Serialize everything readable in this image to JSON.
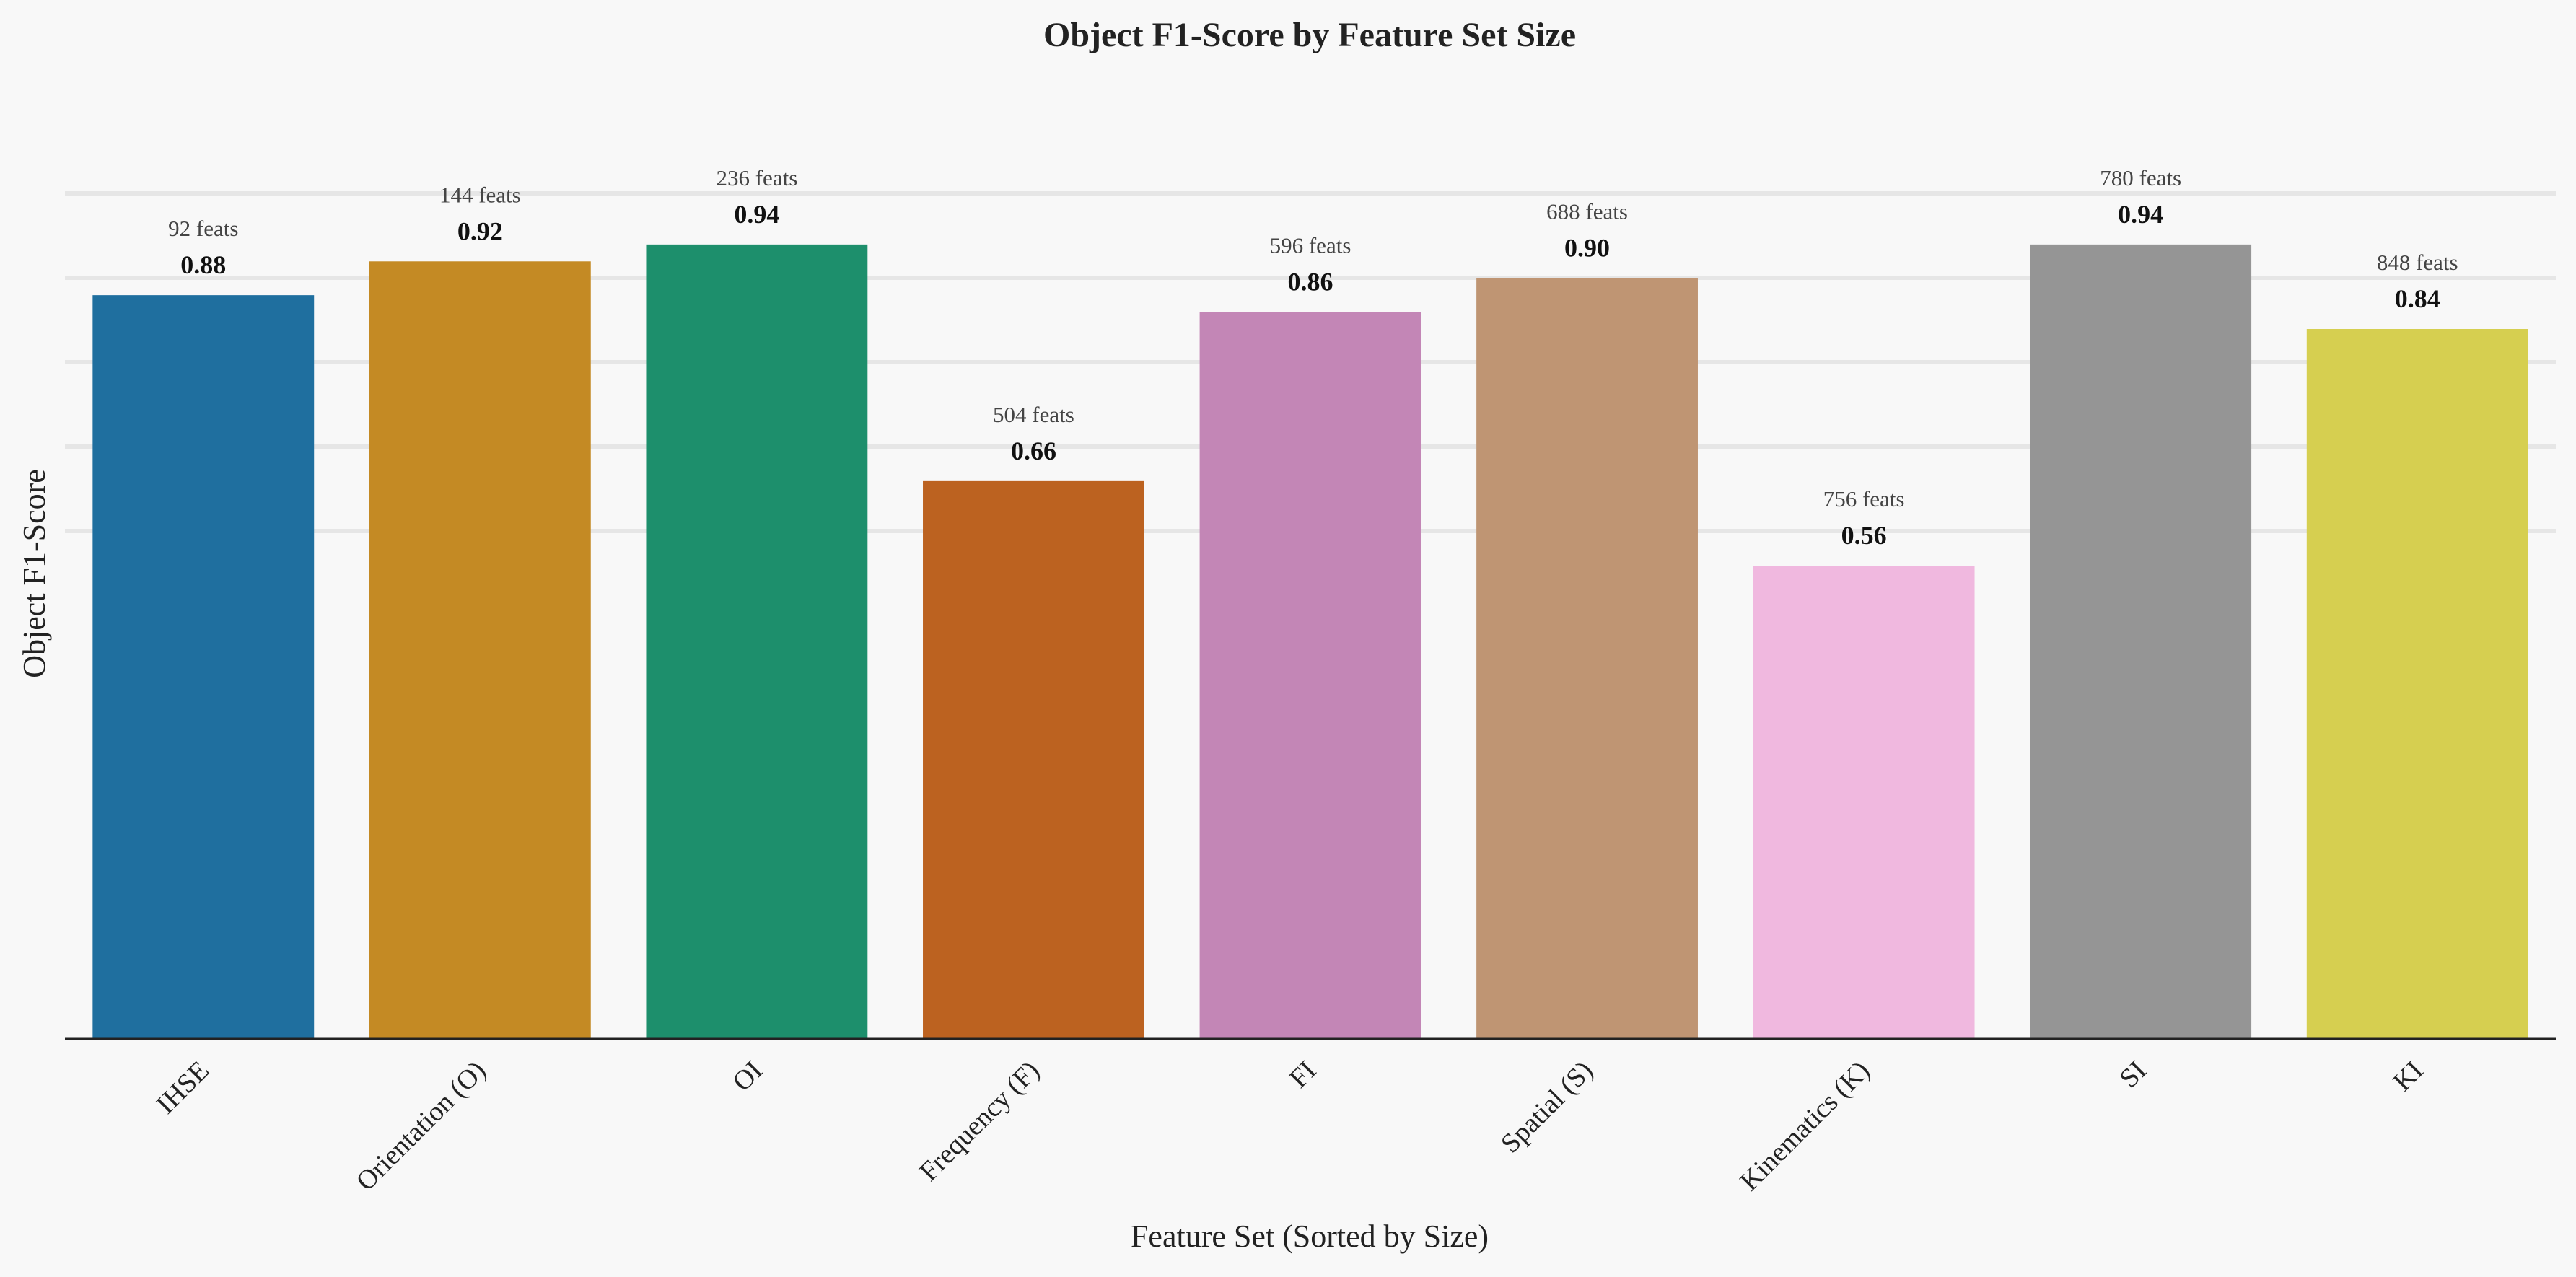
{
  "chart_data": {
    "type": "bar",
    "title": "Object F1-Score by Feature Set Size",
    "xlabel": "Feature Set (Sorted by Size)",
    "ylabel": "Object F1-Score",
    "ylim": [
      0,
      1.2
    ],
    "grid": true,
    "categories": [
      "IHSE",
      "Orientation (O)",
      "OI",
      "Frequency (F)",
      "FI",
      "Spatial (S)",
      "Kinematics (K)",
      "SI",
      "KI"
    ],
    "values": [
      0.88,
      0.92,
      0.94,
      0.66,
      0.86,
      0.9,
      0.56,
      0.94,
      0.84
    ],
    "value_labels": [
      "0.88",
      "0.92",
      "0.94",
      "0.66",
      "0.86",
      "0.90",
      "0.56",
      "0.94",
      "0.84"
    ],
    "feature_counts": [
      "92 feats",
      "144 feats",
      "236 feats",
      "504 feats",
      "596 feats",
      "688 feats",
      "756 feats",
      "780 feats",
      "848 feats"
    ],
    "colors": [
      "#1f6f9f",
      "#c48a24",
      "#1d8f6c",
      "#bc6220",
      "#c386b6",
      "#bf9573",
      "#f0b8df",
      "#959595",
      "#d6cf50"
    ]
  }
}
